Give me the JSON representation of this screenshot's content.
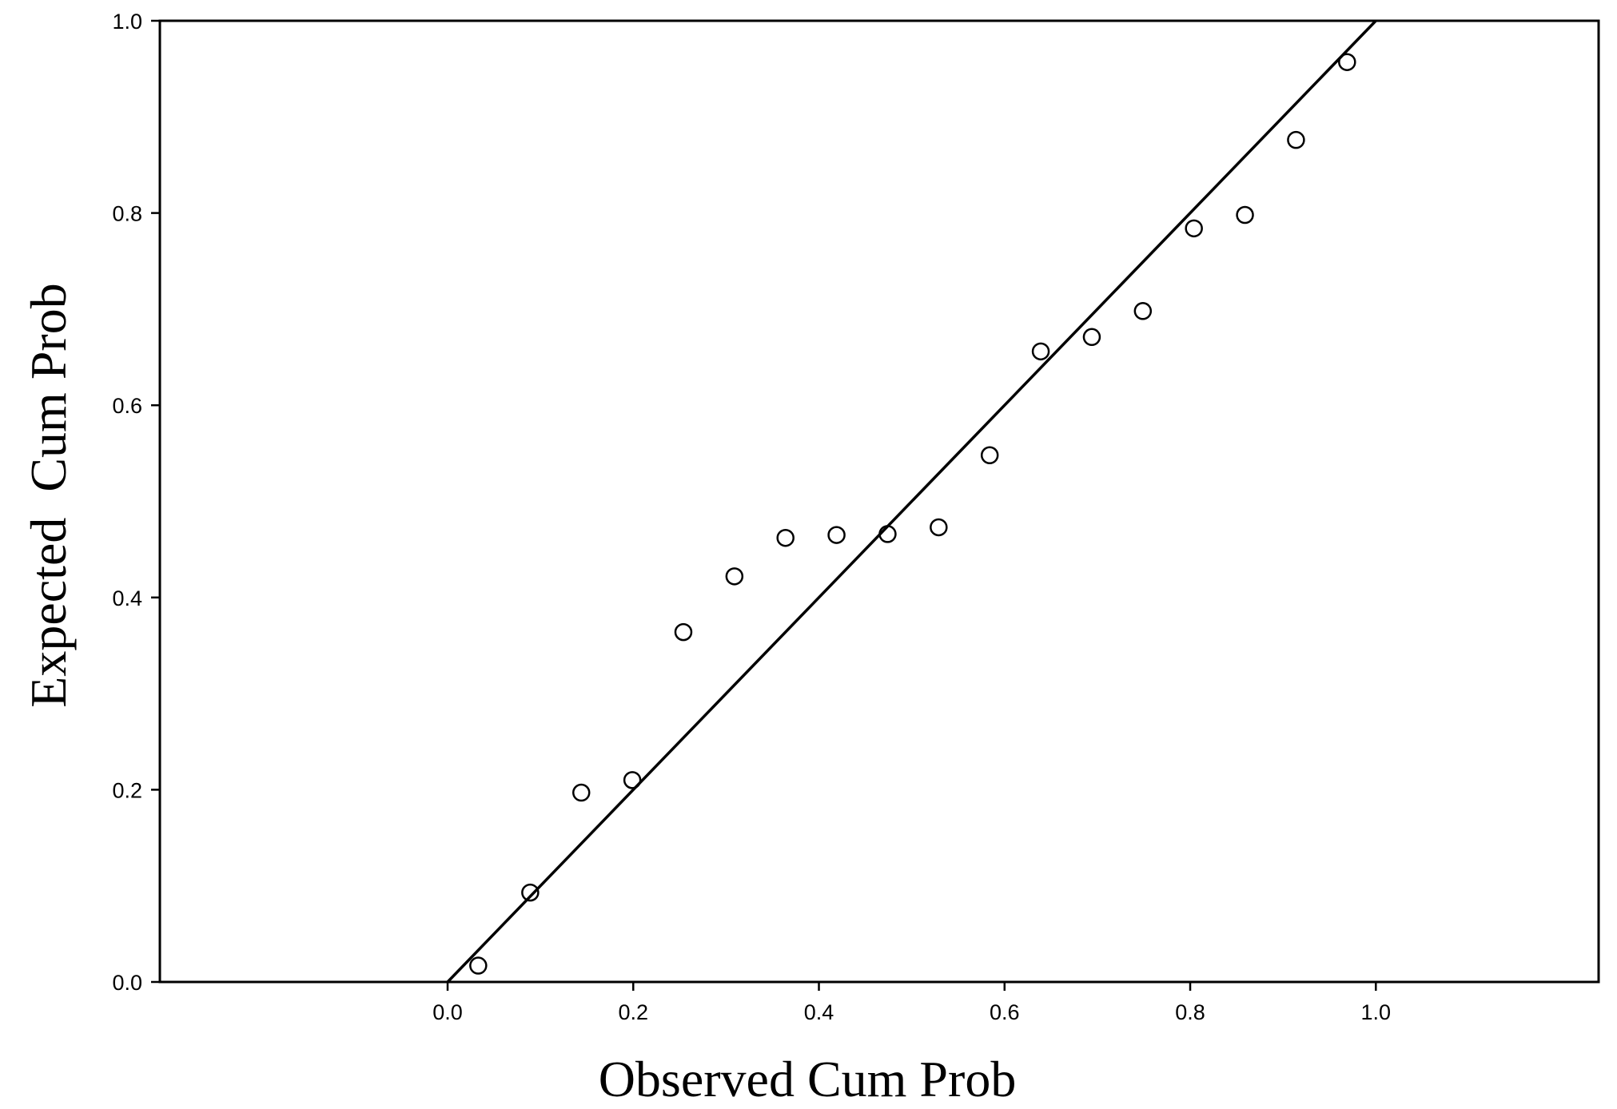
{
  "chart_data": {
    "type": "scatter",
    "title": "",
    "xlabel": "Observed Cum Prob",
    "ylabel": "Expected  Cum Prob",
    "xlim": [
      -0.31,
      1.24
    ],
    "ylim": [
      0,
      1
    ],
    "x_ticks": [
      "0.0",
      "0.2",
      "0.4",
      "0.6",
      "0.8",
      "1.0"
    ],
    "y_ticks": [
      "0.0",
      "0.2",
      "0.4",
      "0.6",
      "0.8",
      "1.0"
    ],
    "grid": false,
    "legend": "none",
    "reference_line": {
      "from": [
        0,
        0
      ],
      "to": [
        1,
        1
      ]
    },
    "marker": "open-circle",
    "series": [
      {
        "points": [
          {
            "x": 0.033,
            "y": 0.017
          },
          {
            "x": 0.089,
            "y": 0.093
          },
          {
            "x": 0.144,
            "y": 0.197
          },
          {
            "x": 0.199,
            "y": 0.21
          },
          {
            "x": 0.254,
            "y": 0.364
          },
          {
            "x": 0.309,
            "y": 0.422
          },
          {
            "x": 0.364,
            "y": 0.462
          },
          {
            "x": 0.419,
            "y": 0.465
          },
          {
            "x": 0.474,
            "y": 0.466
          },
          {
            "x": 0.529,
            "y": 0.473
          },
          {
            "x": 0.584,
            "y": 0.548
          },
          {
            "x": 0.639,
            "y": 0.656
          },
          {
            "x": 0.694,
            "y": 0.671
          },
          {
            "x": 0.749,
            "y": 0.698
          },
          {
            "x": 0.804,
            "y": 0.784
          },
          {
            "x": 0.859,
            "y": 0.798
          },
          {
            "x": 0.914,
            "y": 0.876
          },
          {
            "x": 0.969,
            "y": 0.957
          }
        ]
      }
    ]
  }
}
